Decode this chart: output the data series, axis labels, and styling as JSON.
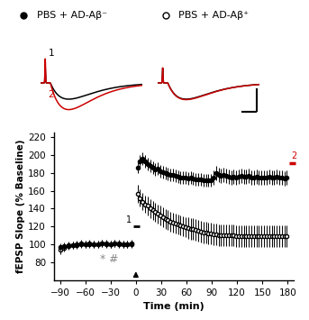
{
  "legend_filled": "PBS + AD-Aβ⁻",
  "legend_open": "PBS + AD-Aβ⁺",
  "xlabel": "Time (min)",
  "ylabel": "fEPSP Slope (% Baseline)",
  "xlim": [
    -97,
    187
  ],
  "ylim": [
    60,
    225
  ],
  "xticks": [
    -90,
    -60,
    -30,
    0,
    30,
    60,
    90,
    120,
    150,
    180
  ],
  "yticks": [
    80,
    100,
    120,
    140,
    160,
    180,
    200,
    220
  ],
  "filled_pre_x": [
    -90,
    -85,
    -80,
    -75,
    -70,
    -65,
    -60,
    -55,
    -50,
    -45,
    -40,
    -35,
    -30,
    -25,
    -20,
    -15,
    -10,
    -5
  ],
  "filled_pre_y": [
    97,
    98,
    99,
    99,
    100,
    101,
    100,
    100,
    100,
    100,
    101,
    100,
    100,
    101,
    100,
    100,
    100,
    101
  ],
  "filled_post_x": [
    2,
    5,
    8,
    11,
    14,
    17,
    20,
    23,
    26,
    29,
    32,
    35,
    38,
    41,
    44,
    47,
    50,
    53,
    56,
    59,
    62,
    65,
    68,
    71,
    74,
    77,
    80,
    83,
    86,
    89,
    92,
    95,
    98,
    101,
    104,
    107,
    110,
    113,
    116,
    119,
    122,
    125,
    128,
    131,
    134,
    137,
    140,
    143,
    146,
    149,
    152,
    155,
    158,
    161,
    164,
    167,
    170,
    173,
    176,
    179
  ],
  "filled_post_y": [
    186,
    193,
    196,
    193,
    190,
    188,
    186,
    184,
    185,
    182,
    181,
    180,
    179,
    178,
    178,
    177,
    176,
    175,
    175,
    175,
    174,
    175,
    174,
    173,
    173,
    173,
    172,
    172,
    172,
    172,
    175,
    180,
    178,
    177,
    178,
    177,
    176,
    175,
    176,
    175,
    176,
    177,
    176,
    176,
    177,
    175,
    175,
    176,
    175,
    175,
    175,
    175,
    176,
    175,
    175,
    176,
    175,
    175,
    174,
    175
  ],
  "open_pre_x": [
    -90,
    -85,
    -80,
    -75,
    -70,
    -65,
    -60,
    -55,
    -50,
    -45,
    -40,
    -35,
    -30,
    -25,
    -20,
    -15,
    -10,
    -5
  ],
  "open_pre_y": [
    94,
    96,
    98,
    99,
    99,
    100,
    100,
    101,
    100,
    100,
    101,
    101,
    100,
    101,
    101,
    100,
    100,
    100
  ],
  "open_post_x": [
    2,
    5,
    8,
    11,
    14,
    17,
    20,
    23,
    26,
    29,
    32,
    35,
    38,
    41,
    44,
    47,
    50,
    53,
    56,
    59,
    62,
    65,
    68,
    71,
    74,
    77,
    80,
    83,
    86,
    89,
    92,
    95,
    98,
    101,
    104,
    107,
    110,
    113,
    116,
    119,
    122,
    125,
    128,
    131,
    134,
    137,
    140,
    143,
    146,
    149,
    152,
    155,
    158,
    161,
    164,
    167,
    170,
    173,
    176,
    179
  ],
  "open_post_y": [
    157,
    152,
    148,
    145,
    143,
    140,
    138,
    136,
    134,
    132,
    130,
    128,
    127,
    125,
    124,
    123,
    122,
    121,
    120,
    119,
    118,
    117,
    117,
    116,
    115,
    114,
    113,
    113,
    112,
    112,
    111,
    111,
    110,
    110,
    110,
    110,
    110,
    110,
    110,
    109,
    109,
    109,
    109,
    109,
    109,
    109,
    109,
    109,
    109,
    109,
    109,
    109,
    109,
    109,
    109,
    109,
    109,
    109,
    109,
    109
  ],
  "filled_pre_err": [
    4,
    4,
    4,
    4,
    4,
    4,
    4,
    4,
    4,
    4,
    4,
    4,
    4,
    4,
    4,
    4,
    4,
    4
  ],
  "filled_post_err": [
    6,
    7,
    7,
    7,
    7,
    7,
    7,
    7,
    7,
    7,
    7,
    7,
    7,
    7,
    7,
    7,
    7,
    7,
    7,
    7,
    7,
    7,
    7,
    7,
    7,
    7,
    7,
    7,
    7,
    7,
    8,
    8,
    8,
    8,
    8,
    8,
    8,
    8,
    8,
    8,
    8,
    8,
    8,
    8,
    8,
    8,
    8,
    8,
    8,
    8,
    8,
    8,
    8,
    8,
    8,
    8,
    8,
    8,
    8,
    8
  ],
  "open_pre_err": [
    5,
    4,
    4,
    4,
    4,
    4,
    4,
    4,
    4,
    4,
    4,
    4,
    4,
    4,
    4,
    4,
    4,
    4
  ],
  "open_post_err": [
    10,
    10,
    10,
    10,
    11,
    11,
    11,
    11,
    11,
    11,
    11,
    11,
    11,
    11,
    11,
    11,
    11,
    11,
    11,
    11,
    12,
    12,
    12,
    12,
    12,
    12,
    12,
    12,
    12,
    12,
    12,
    12,
    12,
    12,
    12,
    12,
    12,
    12,
    12,
    12,
    12,
    12,
    12,
    12,
    12,
    12,
    12,
    12,
    12,
    12,
    12,
    12,
    12,
    12,
    12,
    12,
    12,
    12,
    12,
    12
  ],
  "black": "#000000",
  "red": "#cc0000",
  "gray": "#888888"
}
